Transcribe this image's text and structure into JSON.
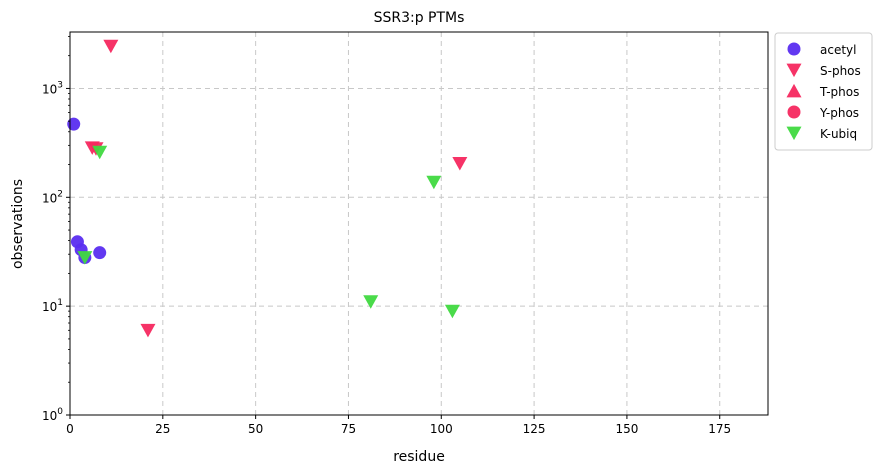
{
  "chart_data": {
    "type": "scatter",
    "title": "SSR3:p PTMs",
    "xlabel": "residue",
    "ylabel": "observations",
    "xlim": [
      0,
      188
    ],
    "ylim": [
      1,
      3300
    ],
    "yscale": "log",
    "grid": true,
    "legend_position": "outside-top-right",
    "x_ticks": [
      {
        "value": 0,
        "label": "0"
      },
      {
        "value": 25,
        "label": "25"
      },
      {
        "value": 50,
        "label": "50"
      },
      {
        "value": 75,
        "label": "75"
      },
      {
        "value": 100,
        "label": "100"
      },
      {
        "value": 125,
        "label": "125"
      },
      {
        "value": 150,
        "label": "150"
      },
      {
        "value": 175,
        "label": "175"
      }
    ],
    "y_ticks": [
      {
        "value": 1,
        "base": "10",
        "exp": "0"
      },
      {
        "value": 10,
        "base": "10",
        "exp": "1"
      },
      {
        "value": 100,
        "base": "10",
        "exp": "2"
      },
      {
        "value": 1000,
        "base": "10",
        "exp": "3"
      }
    ],
    "series": [
      {
        "name": "acetyl",
        "marker": "circle",
        "color": "#5a2df0",
        "points": [
          [
            1,
            470
          ],
          [
            2,
            39
          ],
          [
            3,
            33
          ],
          [
            4,
            28
          ],
          [
            8,
            31
          ]
        ]
      },
      {
        "name": "S-phos",
        "marker": "triangle-down",
        "color": "#f5285f",
        "points": [
          [
            6,
            285
          ],
          [
            7,
            280
          ],
          [
            11,
            2450
          ],
          [
            21,
            6
          ],
          [
            105,
            205
          ]
        ]
      },
      {
        "name": "T-phos",
        "marker": "triangle-up",
        "color": "#f5285f",
        "points": []
      },
      {
        "name": "Y-phos",
        "marker": "circle",
        "color": "#f5285f",
        "points": []
      },
      {
        "name": "K-ubiq",
        "marker": "triangle-down",
        "color": "#40d940",
        "points": [
          [
            4,
            28
          ],
          [
            8,
            260
          ],
          [
            81,
            11
          ],
          [
            98,
            138
          ],
          [
            103,
            9
          ]
        ]
      }
    ]
  }
}
